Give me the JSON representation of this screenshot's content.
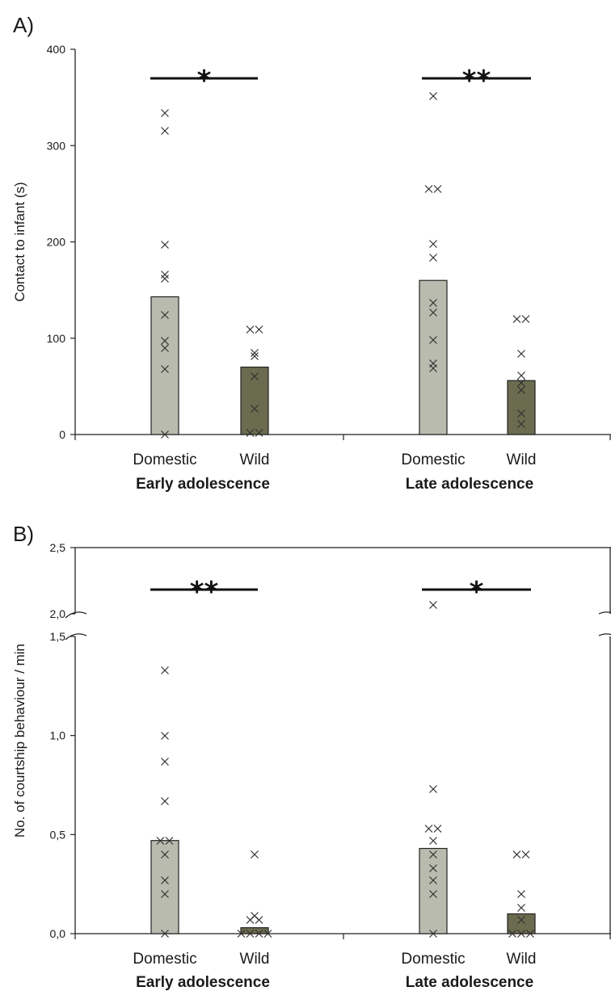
{
  "colors": {
    "domestic": "#b9bbae",
    "wild": "#6b6b4f",
    "bar_stroke": "#222222",
    "marker": "#333333"
  },
  "chart_data": [
    {
      "type": "bar",
      "panel": "A)",
      "ylabel": "Contact to infant (s)",
      "ylim": [
        0,
        400
      ],
      "yticks": [
        0,
        100,
        200,
        300,
        400
      ],
      "ytick_labels": [
        "0",
        "100",
        "200",
        "300",
        "400"
      ],
      "groups": [
        {
          "label": "Early adolescence",
          "significance": "*",
          "bars": [
            {
              "category": "Domestic",
              "value": 143,
              "points": [
                334,
                315,
                197,
                166,
                162,
                124,
                97,
                90,
                68,
                0
              ]
            },
            {
              "category": "Wild",
              "value": 70,
              "points": [
                109,
                109,
                85,
                81,
                60,
                27,
                2,
                2
              ]
            }
          ]
        },
        {
          "label": "Late adolescence",
          "significance": "**",
          "bars": [
            {
              "category": "Domestic",
              "value": 160,
              "points": [
                351,
                255,
                255,
                198,
                184,
                137,
                127,
                98,
                74,
                69
              ]
            },
            {
              "category": "Wild",
              "value": 56,
              "points": [
                120,
                120,
                84,
                61,
                54,
                46,
                22,
                11
              ]
            }
          ]
        }
      ]
    },
    {
      "type": "bar",
      "panel": "B)",
      "ylabel": "No. of courtship behaviour / min",
      "ylim": [
        0,
        2.5
      ],
      "axis_break": [
        1.5,
        2.0
      ],
      "yticks": [
        0,
        0.5,
        1.0,
        1.5,
        2.0,
        2.5
      ],
      "ytick_labels": [
        "0,0",
        "0,5",
        "1,0",
        "1,5",
        "2,0",
        "2,5"
      ],
      "groups": [
        {
          "label": "Early adolescence",
          "significance": "**",
          "bars": [
            {
              "category": "Domestic",
              "value": 0.47,
              "points": [
                1.33,
                1.0,
                0.87,
                0.67,
                0.47,
                0.47,
                0.4,
                0.27,
                0.2,
                0.0
              ]
            },
            {
              "category": "Wild",
              "value": 0.03,
              "points": [
                0.4,
                0.09,
                0.07,
                0.07,
                0.0,
                0.0,
                0.0,
                0.0
              ]
            }
          ]
        },
        {
          "label": "Late adolescence",
          "significance": "*",
          "bars": [
            {
              "category": "Domestic",
              "value": 0.43,
              "points": [
                2.07,
                0.73,
                0.53,
                0.53,
                0.47,
                0.4,
                0.33,
                0.27,
                0.2,
                0.0
              ]
            },
            {
              "category": "Wild",
              "value": 0.1,
              "points": [
                0.4,
                0.4,
                0.2,
                0.13,
                0.07,
                0.0,
                0.0,
                0.0
              ]
            }
          ]
        }
      ]
    }
  ]
}
